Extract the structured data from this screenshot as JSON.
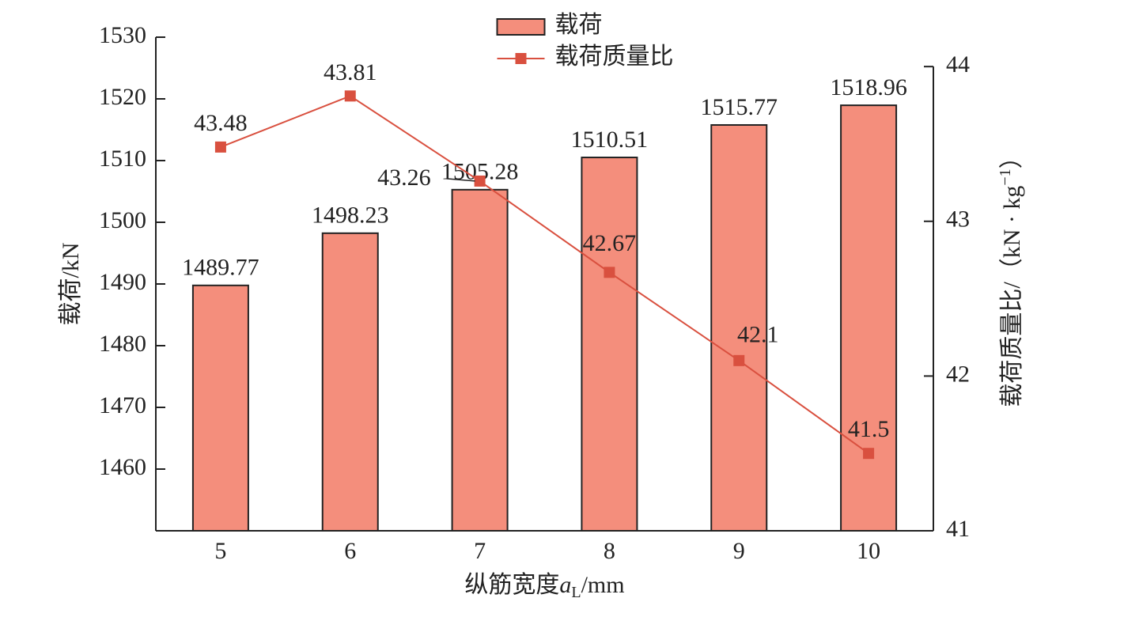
{
  "chart_data": {
    "type": "bar-line",
    "categories": [
      "5",
      "6",
      "7",
      "8",
      "9",
      "10"
    ],
    "series": [
      {
        "name": "载荷",
        "type": "bar",
        "color": "#f48e7c",
        "edgecolor": "#222222",
        "values": [
          1489.77,
          1498.23,
          1505.28,
          1510.51,
          1515.77,
          1518.96
        ]
      },
      {
        "name": "载荷质量比",
        "type": "line",
        "axis": "y2",
        "color": "#d9503f",
        "values": [
          43.48,
          43.81,
          43.26,
          42.67,
          42.1,
          41.5
        ]
      }
    ],
    "ylabel": "载荷/kN",
    "y2label": {
      "main": "载荷质量比/（kN · kg",
      "sup": "−1",
      "end": "）"
    },
    "xlabel": {
      "main": "纵筋宽度",
      "var": "a",
      "sub": "L",
      "end": "/mm"
    },
    "ylim": [
      1450,
      1530
    ],
    "yticks": [
      1460,
      1470,
      1480,
      1490,
      1500,
      1510,
      1520,
      1530
    ],
    "y2lim": [
      41,
      44.19
    ],
    "y2ticks": [
      41,
      42,
      43,
      44
    ],
    "legend": "upper center",
    "grid": false
  }
}
